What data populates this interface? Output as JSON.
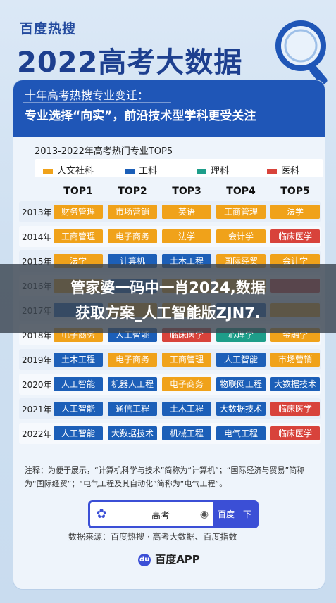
{
  "brand": "百度热搜",
  "headline": "2022高考大数据",
  "card": {
    "line1": "十年高考热搜专业变迁：",
    "line2": "专业选择“向实”，前沿技术型学科更受关注"
  },
  "chart_title": "2013-2022年高考热门专业TOP5",
  "legend": [
    {
      "label": "人文社科",
      "color": "#f0a21a"
    },
    {
      "label": "工科",
      "color": "#1c5fb8"
    },
    {
      "label": "理科",
      "color": "#1e9e8a"
    },
    {
      "label": "医科",
      "color": "#d8433b"
    }
  ],
  "columns": [
    "TOP1",
    "TOP2",
    "TOP3",
    "TOP4",
    "TOP5"
  ],
  "colors": {
    "human": "#f0a21a",
    "eng": "#1c5fb8",
    "sci": "#1e9e8a",
    "med": "#d8433b"
  },
  "rows": [
    {
      "year": "2013年",
      "items": [
        {
          "t": "财务管理",
          "c": "human"
        },
        {
          "t": "市场营销",
          "c": "human"
        },
        {
          "t": "英语",
          "c": "human"
        },
        {
          "t": "工商管理",
          "c": "human"
        },
        {
          "t": "法学",
          "c": "human"
        }
      ]
    },
    {
      "year": "2014年",
      "items": [
        {
          "t": "工商管理",
          "c": "human"
        },
        {
          "t": "电子商务",
          "c": "human"
        },
        {
          "t": "法学",
          "c": "human"
        },
        {
          "t": "会计学",
          "c": "human"
        },
        {
          "t": "临床医学",
          "c": "med"
        }
      ]
    },
    {
      "year": "2015年",
      "items": [
        {
          "t": "法学",
          "c": "human"
        },
        {
          "t": "计算机",
          "c": "eng"
        },
        {
          "t": "土木工程",
          "c": "eng"
        },
        {
          "t": "国际经贸",
          "c": "human"
        },
        {
          "t": "会计学",
          "c": "human"
        }
      ]
    },
    {
      "year": "2016年",
      "items": [
        {
          "t": "",
          "c": "human"
        },
        {
          "t": "",
          "c": "eng"
        },
        {
          "t": "",
          "c": "human"
        },
        {
          "t": "",
          "c": "human"
        },
        {
          "t": "",
          "c": "med"
        }
      ]
    },
    {
      "year": "2017年",
      "items": [
        {
          "t": "",
          "c": "eng"
        },
        {
          "t": "",
          "c": "human"
        },
        {
          "t": "",
          "c": "human"
        },
        {
          "t": "",
          "c": "eng"
        },
        {
          "t": "",
          "c": "human"
        }
      ]
    },
    {
      "year": "2018年",
      "items": [
        {
          "t": "电子商务",
          "c": "human"
        },
        {
          "t": "人工智能",
          "c": "eng"
        },
        {
          "t": "临床医学",
          "c": "med"
        },
        {
          "t": "心理学",
          "c": "sci"
        },
        {
          "t": "金融学",
          "c": "human"
        }
      ]
    },
    {
      "year": "2019年",
      "items": [
        {
          "t": "土木工程",
          "c": "eng"
        },
        {
          "t": "电子商务",
          "c": "human"
        },
        {
          "t": "工商管理",
          "c": "human"
        },
        {
          "t": "人工智能",
          "c": "eng"
        },
        {
          "t": "市场营销",
          "c": "human"
        }
      ]
    },
    {
      "year": "2020年",
      "items": [
        {
          "t": "人工智能",
          "c": "eng"
        },
        {
          "t": "机器人工程",
          "c": "eng"
        },
        {
          "t": "电子商务",
          "c": "human"
        },
        {
          "t": "物联网工程",
          "c": "eng"
        },
        {
          "t": "大数据技术",
          "c": "eng"
        }
      ]
    },
    {
      "year": "2021年",
      "items": [
        {
          "t": "人工智能",
          "c": "eng"
        },
        {
          "t": "通信工程",
          "c": "eng"
        },
        {
          "t": "土木工程",
          "c": "eng"
        },
        {
          "t": "大数据技术",
          "c": "eng"
        },
        {
          "t": "临床医学",
          "c": "med"
        }
      ]
    },
    {
      "year": "2022年",
      "items": [
        {
          "t": "人工智能",
          "c": "eng"
        },
        {
          "t": "大数据技术",
          "c": "eng"
        },
        {
          "t": "机械工程",
          "c": "eng"
        },
        {
          "t": "电气工程",
          "c": "eng"
        },
        {
          "t": "临床医学",
          "c": "med"
        }
      ]
    }
  ],
  "note": "注释：为便于展示，“计算机科学与技术”简称为“计算机”；“国际经济与贸易”简称为“国际经贸”；“电气工程及其自动化”简称为“电气工程”。",
  "search": {
    "query": "高考",
    "button": "百度一下",
    "logo_icon": "du-paw-icon",
    "camera_icon": "camera-icon"
  },
  "source": "数据来源：百度热搜 · 高考大数据、百度指数",
  "app_label": "百度APP",
  "overlay": {
    "line1": "管家婆一码中一肖2024,数据",
    "line2": "获取方案_人工智能版ZJN7."
  }
}
